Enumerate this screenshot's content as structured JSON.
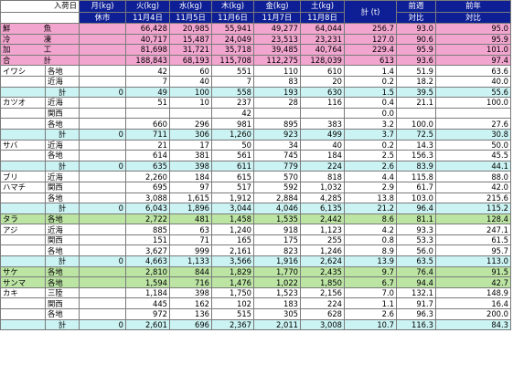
{
  "header": {
    "row1": [
      "入荷日",
      "月(kg)",
      "火(kg)",
      "水(kg)",
      "木(kg)",
      "金(kg)",
      "土(kg)",
      "計 (t)",
      "前週",
      "前年"
    ],
    "row2": [
      "",
      "休市",
      "11月4日",
      "11月5日",
      "11月6日",
      "11月7日",
      "11月8日",
      "",
      "対比",
      "対比"
    ]
  },
  "summary": [
    {
      "label": "鮮　魚",
      "values": [
        "",
        "66,428",
        "20,985",
        "55,941",
        "49,277",
        "64,044",
        "256.7",
        "93.0",
        "95.0"
      ]
    },
    {
      "label": "冷　凍",
      "values": [
        "",
        "40,717",
        "15,487",
        "24,049",
        "23,513",
        "23,231",
        "127.0",
        "90.6",
        "95.9"
      ]
    },
    {
      "label": "加　工",
      "values": [
        "",
        "81,698",
        "31,721",
        "35,718",
        "39,485",
        "40,764",
        "229.4",
        "95.9",
        "101.0"
      ]
    },
    {
      "label": "合　計",
      "values": [
        "",
        "188,843",
        "68,193",
        "115,708",
        "112,275",
        "128,039",
        "613",
        "93.6",
        "97.4"
      ]
    }
  ],
  "rows": [
    {
      "fish": "イワシ",
      "origin": "各地",
      "values": [
        "",
        "42",
        "60",
        "551",
        "110",
        "610",
        "1.4",
        "51.9",
        "63.6"
      ]
    },
    {
      "fish": "",
      "origin": "近海",
      "values": [
        "",
        "7",
        "40",
        "7",
        "83",
        "20",
        "0.2",
        "18.2",
        "40.0"
      ]
    },
    {
      "fish": "",
      "origin": "計",
      "total": true,
      "values": [
        "0",
        "49",
        "100",
        "558",
        "193",
        "630",
        "1.5",
        "39.5",
        "55.6"
      ]
    },
    {
      "fish": "カツオ",
      "origin": "近海",
      "values": [
        "",
        "51",
        "10",
        "237",
        "28",
        "116",
        "0.4",
        "21.1",
        "100.0"
      ]
    },
    {
      "fish": "",
      "origin": "関西",
      "values": [
        "",
        "",
        "",
        "42",
        "",
        "",
        "0.0",
        "",
        ""
      ]
    },
    {
      "fish": "",
      "origin": "各地",
      "values": [
        "",
        "660",
        "296",
        "981",
        "895",
        "383",
        "3.2",
        "100.0",
        "27.6"
      ]
    },
    {
      "fish": "",
      "origin": "計",
      "total": true,
      "values": [
        "0",
        "711",
        "306",
        "1,260",
        "923",
        "499",
        "3.7",
        "72.5",
        "30.8"
      ]
    },
    {
      "fish": "サバ",
      "origin": "近海",
      "values": [
        "",
        "21",
        "17",
        "50",
        "34",
        "40",
        "0.2",
        "14.3",
        "50.0"
      ]
    },
    {
      "fish": "",
      "origin": "各地",
      "values": [
        "",
        "614",
        "381",
        "561",
        "745",
        "184",
        "2.5",
        "156.3",
        "45.5"
      ]
    },
    {
      "fish": "",
      "origin": "計",
      "total": true,
      "values": [
        "0",
        "635",
        "398",
        "611",
        "779",
        "224",
        "2.6",
        "83.9",
        "44.1"
      ]
    },
    {
      "fish": "ブリ",
      "origin": "近海",
      "values": [
        "",
        "2,260",
        "184",
        "615",
        "570",
        "818",
        "4.4",
        "115.8",
        "88.0"
      ]
    },
    {
      "fish": "ハマチ",
      "origin": "関西",
      "values": [
        "",
        "695",
        "97",
        "517",
        "592",
        "1,032",
        "2.9",
        "61.7",
        "42.0"
      ]
    },
    {
      "fish": "",
      "origin": "各地",
      "values": [
        "",
        "3,088",
        "1,615",
        "1,912",
        "2,884",
        "4,285",
        "13.8",
        "103.0",
        "215.6"
      ]
    },
    {
      "fish": "",
      "origin": "計",
      "total": true,
      "values": [
        "0",
        "6,043",
        "1,896",
        "3,044",
        "4,046",
        "6,135",
        "21.2",
        "96.4",
        "115.2"
      ]
    },
    {
      "fish": "タラ",
      "origin": "各地",
      "green": true,
      "values": [
        "",
        "2,722",
        "481",
        "1,458",
        "1,535",
        "2,442",
        "8.6",
        "81.1",
        "128.4"
      ]
    },
    {
      "fish": "アジ",
      "origin": "近海",
      "values": [
        "",
        "885",
        "63",
        "1,240",
        "918",
        "1,123",
        "4.2",
        "93.3",
        "247.1"
      ]
    },
    {
      "fish": "",
      "origin": "関西",
      "values": [
        "",
        "151",
        "71",
        "165",
        "175",
        "255",
        "0.8",
        "53.3",
        "61.5"
      ]
    },
    {
      "fish": "",
      "origin": "各地",
      "values": [
        "",
        "3,627",
        "999",
        "2,161",
        "823",
        "1,246",
        "8.9",
        "56.0",
        "95.7"
      ]
    },
    {
      "fish": "",
      "origin": "計",
      "total": true,
      "values": [
        "0",
        "4,663",
        "1,133",
        "3,566",
        "1,916",
        "2,624",
        "13.9",
        "63.5",
        "113.0"
      ]
    },
    {
      "fish": "サケ",
      "origin": "各地",
      "green": true,
      "values": [
        "",
        "2,810",
        "844",
        "1,829",
        "1,770",
        "2,435",
        "9.7",
        "76.4",
        "91.5"
      ]
    },
    {
      "fish": "サンマ",
      "origin": "各地",
      "green": true,
      "values": [
        "",
        "1,594",
        "716",
        "1,476",
        "1,022",
        "1,850",
        "6.7",
        "94.4",
        "42.7"
      ]
    },
    {
      "fish": "カキ",
      "origin": "三陸",
      "values": [
        "",
        "1,184",
        "398",
        "1,750",
        "1,523",
        "2,156",
        "7.0",
        "132.1",
        "148.9"
      ]
    },
    {
      "fish": "",
      "origin": "関西",
      "values": [
        "",
        "445",
        "162",
        "102",
        "183",
        "224",
        "1.1",
        "91.7",
        "16.4"
      ]
    },
    {
      "fish": "",
      "origin": "各地",
      "values": [
        "",
        "972",
        "136",
        "515",
        "305",
        "628",
        "2.6",
        "96.3",
        "200.0"
      ]
    },
    {
      "fish": "",
      "origin": "計",
      "total": true,
      "values": [
        "0",
        "2,601",
        "696",
        "2,367",
        "2,011",
        "3,008",
        "10.7",
        "116.3",
        "84.3"
      ]
    }
  ]
}
